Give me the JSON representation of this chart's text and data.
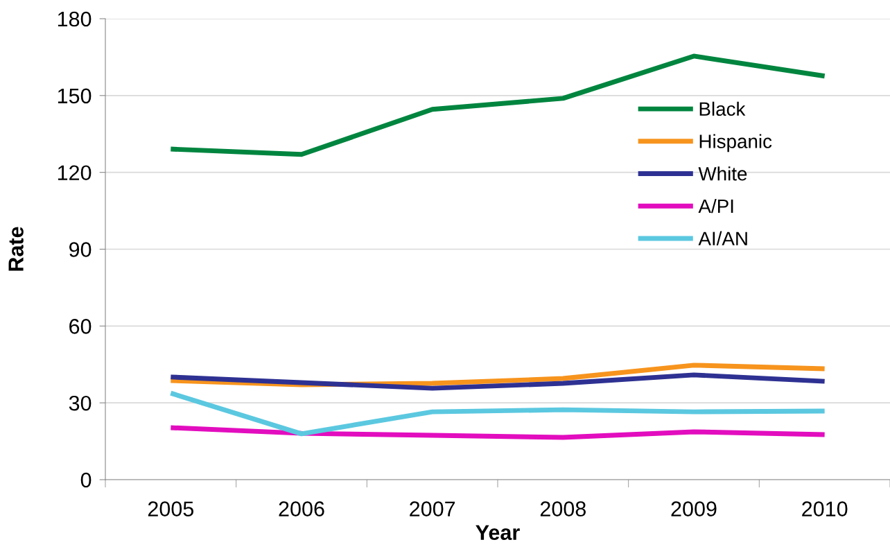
{
  "chart_data": {
    "type": "line",
    "xlabel": "Year",
    "ylabel": "Rate",
    "categories": [
      "2005",
      "2006",
      "2007",
      "2008",
      "2009",
      "2010"
    ],
    "series": [
      {
        "name": "Black",
        "color": "#00853f",
        "values": [
          129.1,
          127.0,
          144.6,
          148.9,
          165.4,
          157.6
        ]
      },
      {
        "name": "Hispanic",
        "color": "#f7941d",
        "values": [
          38.7,
          37.1,
          37.6,
          39.5,
          44.7,
          43.3
        ]
      },
      {
        "name": "White",
        "color": "#2e3192",
        "values": [
          40.1,
          37.9,
          35.7,
          37.6,
          40.9,
          38.4
        ]
      },
      {
        "name": "A/PI",
        "color": "#e20dbe",
        "values": [
          20.3,
          18.1,
          17.3,
          16.5,
          18.7,
          17.6
        ]
      },
      {
        "name": "AI/AN",
        "color": "#5bc8e0",
        "values": [
          33.8,
          17.9,
          26.5,
          27.3,
          26.5,
          26.8
        ]
      }
    ],
    "ylim": [
      0,
      180
    ],
    "yticks": [
      0,
      30,
      60,
      90,
      120,
      150,
      180
    ],
    "grid": "y",
    "legend": "right",
    "marker": "none",
    "line_style": "solid"
  }
}
